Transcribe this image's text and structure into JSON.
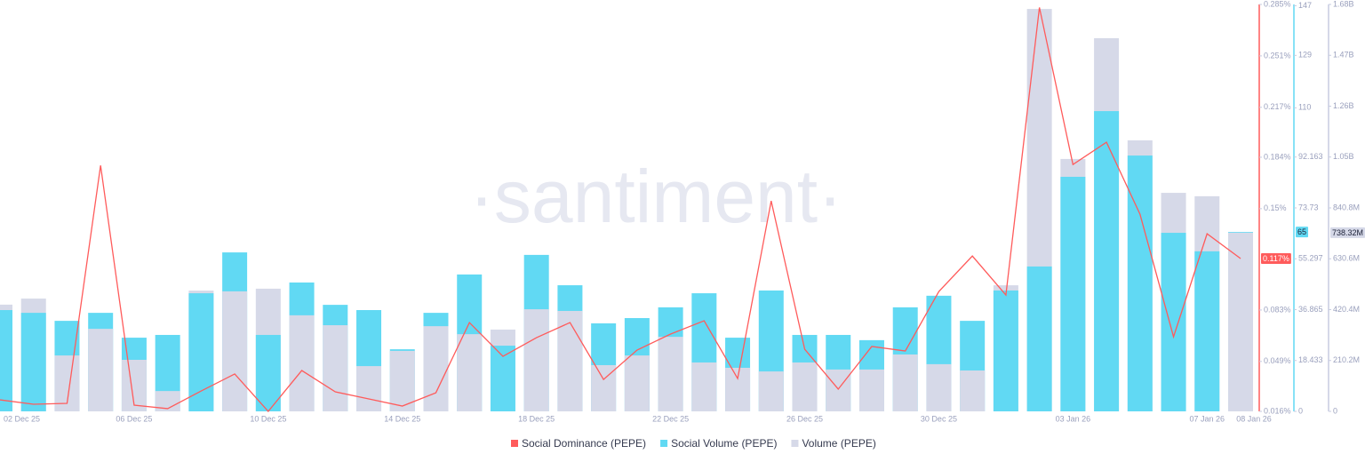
{
  "chart_data": {
    "type": "combo",
    "watermark": "·santiment·",
    "categories": [
      "02 Dec 25",
      null,
      null,
      null,
      "06 Dec 25",
      null,
      null,
      null,
      "10 Dec 25",
      null,
      null,
      null,
      "14 Dec 25",
      null,
      null,
      null,
      "18 Dec 25",
      null,
      null,
      null,
      "22 Dec 25",
      null,
      null,
      null,
      "26 Dec 25",
      null,
      null,
      null,
      "30 Dec 25",
      null,
      null,
      null,
      "03 Jan 26",
      null,
      null,
      null,
      "07 Jan 26",
      "08 Jan 26"
    ],
    "series": [
      {
        "name": "Social Dominance (PEPE)",
        "type": "line",
        "axis": "y",
        "color": "#ff5b5b",
        "values": [
          0.0236,
          0.0207,
          0.0213,
          0.1786,
          0.0201,
          0.0178,
          0.0295,
          0.0407,
          0.016,
          0.043,
          0.0289,
          0.0242,
          0.0195,
          0.0283,
          0.0747,
          0.0524,
          0.0647,
          0.0747,
          0.0371,
          0.0565,
          0.0671,
          0.0759,
          0.0377,
          0.1551,
          0.0571,
          0.0307,
          0.0589,
          0.0559,
          0.0952,
          0.1187,
          0.0929,
          0.283,
          0.1792,
          0.1939,
          0.1463,
          0.0653,
          0.1334,
          0.117
        ],
        "value_labels": [
          null,
          null,
          null,
          null,
          null,
          null,
          null,
          null,
          null,
          null,
          null,
          null,
          null,
          null,
          null,
          null,
          null,
          null,
          null,
          null,
          null,
          null,
          null,
          null,
          null,
          null,
          null,
          null,
          null,
          null,
          null,
          null,
          null,
          null,
          null,
          null,
          null,
          "0.117%"
        ]
      },
      {
        "name": "Social Volume (PEPE)",
        "type": "bar",
        "axis": "y2",
        "color": "#61d9f3",
        "values": [
          36.7,
          35.7,
          32.8,
          35.7,
          26.7,
          27.7,
          42.8,
          57.6,
          27.7,
          46.7,
          38.6,
          36.7,
          22.5,
          35.7,
          49.6,
          23.8,
          56.7,
          45.7,
          31.9,
          33.8,
          37.7,
          42.8,
          26.7,
          43.8,
          27.7,
          27.7,
          25.8,
          37.7,
          41.9,
          32.8,
          43.8,
          52.5,
          85,
          108.8,
          92.7,
          64.7,
          58,
          65
        ]
      },
      {
        "name": "Volume (PEPE)",
        "type": "bar",
        "axis": "y3",
        "color": "#d6d9e8",
        "values": [
          441,
          466,
          231,
          341,
          213,
          84,
          499,
          496,
          507,
          397,
          356,
          187,
          250,
          352,
          319,
          338,
          422,
          415,
          191,
          231,
          308,
          202,
          180,
          165,
          202,
          173,
          173,
          235,
          195,
          169,
          521,
          1663,
          1043,
          1542,
          1120,
          903,
          889,
          738.32
        ],
        "value_labels": [
          null,
          null,
          null,
          null,
          null,
          null,
          null,
          null,
          null,
          null,
          null,
          null,
          null,
          null,
          null,
          null,
          null,
          null,
          null,
          null,
          null,
          null,
          null,
          null,
          null,
          null,
          null,
          null,
          null,
          null,
          null,
          null,
          null,
          null,
          null,
          null,
          null,
          "738.32M"
        ]
      }
    ],
    "ylim": [
      0.016,
      0.285
    ],
    "yticks": [
      {
        "value": 0.016,
        "label": "0.016%"
      },
      {
        "value": 0.049,
        "label": "0.049%"
      },
      {
        "value": 0.083,
        "label": "0.083%"
      },
      {
        "value": 0.15,
        "label": "0.15%"
      },
      {
        "value": 0.184,
        "label": "0.184%"
      },
      {
        "value": 0.217,
        "label": "0.217%"
      },
      {
        "value": 0.251,
        "label": "0.251%"
      },
      {
        "value": 0.285,
        "label": "0.285%"
      }
    ],
    "y2lim": [
      0,
      147.46
    ],
    "y2ticks": [
      0,
      18.433,
      36.865,
      55.297,
      73.73,
      92.163,
      110,
      129,
      147
    ],
    "y3lim": [
      0,
      1681.6
    ],
    "y3ticks": [
      0,
      {
        "value": 210.2,
        "label": "210.2M"
      },
      {
        "value": 420.4,
        "label": "420.4M"
      },
      {
        "value": 630.6,
        "label": "630.6M"
      },
      {
        "value": 840.8,
        "label": "840.8M"
      },
      {
        "value": 1051,
        "label": "1.05B"
      },
      {
        "value": 1261.2,
        "label": "1.26B"
      },
      {
        "value": 1471.4,
        "label": "1.47B"
      },
      {
        "value": 1681.6,
        "label": "1.68B"
      }
    ]
  }
}
